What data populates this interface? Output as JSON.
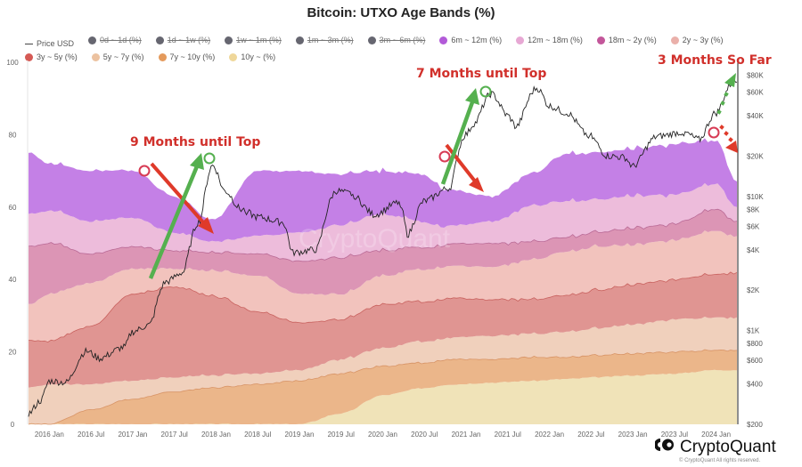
{
  "chart_data": {
    "type": "area",
    "title": "Bitcoin: UTXO Age Bands (%)",
    "xlabel": "",
    "ylabel": "",
    "ylim": [
      0,
      100
    ],
    "y_ticks": [
      "0",
      "20",
      "40",
      "60",
      "80",
      "100"
    ],
    "y2_scale": "log",
    "y2lim": [
      200,
      100000
    ],
    "y2_ticks": [
      {
        "label": "$80K",
        "value": 80000
      },
      {
        "label": "$60K",
        "value": 60000
      },
      {
        "label": "$40K",
        "value": 40000
      },
      {
        "label": "$20K",
        "value": 20000
      },
      {
        "label": "$10K",
        "value": 10000
      },
      {
        "label": "$8K",
        "value": 8000
      },
      {
        "label": "$6K",
        "value": 6000
      },
      {
        "label": "$4K",
        "value": 4000
      },
      {
        "label": "$2K",
        "value": 2000
      },
      {
        "label": "$1K",
        "value": 1000
      },
      {
        "label": "$800",
        "value": 800
      },
      {
        "label": "$600",
        "value": 600
      },
      {
        "label": "$400",
        "value": 400
      },
      {
        "label": "$200",
        "value": 200
      }
    ],
    "x_ticks": [
      "2016 Jan",
      "2016 Jul",
      "2017 Jan",
      "2017 Jul",
      "2018 Jan",
      "2018 Jul",
      "2019 Jan",
      "2019 Jul",
      "2020 Jan",
      "2020 Jul",
      "2021 Jan",
      "2021 Jul",
      "2022 Jan",
      "2022 Jul",
      "2023 Jan",
      "2023 Jul",
      "2024 Jan"
    ],
    "x": [
      2015.75,
      2016.0,
      2016.5,
      2017.0,
      2017.5,
      2017.96,
      2018.5,
      2019.0,
      2019.5,
      2020.0,
      2020.5,
      2020.8,
      2021.3,
      2021.8,
      2022.2,
      2022.6,
      2023.0,
      2023.5,
      2024.0,
      2024.25
    ],
    "legend_placement": "top",
    "grid": false,
    "series": [
      {
        "name": "10y ~ (%)",
        "color": "#f0e3b8",
        "values": [
          0,
          0,
          0,
          0,
          0,
          0,
          0,
          0,
          3,
          8,
          10,
          11,
          11.5,
          12,
          12.5,
          13,
          13.5,
          14,
          15,
          15
        ]
      },
      {
        "name": "7y ~ 10y (%)",
        "color": "#ebb68a",
        "values": [
          0,
          0,
          4,
          7,
          9,
          10,
          11,
          12,
          11,
          8,
          7,
          7,
          6.5,
          6.5,
          6,
          6,
          6,
          6,
          5.5,
          5.5
        ]
      },
      {
        "name": "5y ~ 7y (%)",
        "color": "#f0d0bc",
        "values": [
          10,
          11,
          7,
          5,
          4,
          3.5,
          3,
          3,
          4,
          5,
          6,
          6,
          6.5,
          6.5,
          7,
          7.5,
          8,
          9,
          9,
          9
        ]
      },
      {
        "name": "3y ~ 5y (%)",
        "color": "#e09592",
        "values": [
          13,
          12,
          16,
          24,
          25,
          22,
          17,
          13,
          11,
          12,
          11,
          11,
          10,
          9.5,
          10,
          10.5,
          11,
          11,
          12,
          12.5
        ]
      },
      {
        "name": "2y ~ 3y (%)",
        "color": "#f2c3bd",
        "values": [
          10,
          13,
          12,
          7,
          5,
          7,
          10,
          8,
          7,
          8,
          9,
          9,
          9,
          11,
          12,
          12,
          11,
          11,
          12,
          10
        ]
      },
      {
        "name": "18m ~ 2y (%)",
        "color": "#dc95b5",
        "values": [
          16,
          14,
          8,
          6,
          5,
          5,
          6,
          9,
          10,
          7,
          6,
          6,
          6.5,
          5,
          4,
          4,
          4.5,
          4.5,
          6,
          4
        ]
      },
      {
        "name": "12m ~ 18m (%)",
        "color": "#edbcdb",
        "values": [
          9,
          9,
          9,
          8,
          5,
          3,
          5,
          8,
          9,
          10,
          7,
          5,
          6,
          10,
          10,
          9,
          9,
          8,
          7,
          4
        ]
      },
      {
        "name": "6m ~ 12m (%)",
        "color": "#c480e6",
        "values": [
          17,
          13,
          14,
          13,
          10,
          6,
          18,
          17,
          14,
          12,
          13,
          10,
          7,
          9,
          13,
          13,
          13,
          14,
          12,
          7
        ]
      }
    ],
    "price_usd": {
      "name": "Price USD",
      "color": "#222222",
      "axis": "right",
      "x": [
        2015.75,
        2015.9,
        2016.0,
        2016.2,
        2016.45,
        2016.6,
        2016.9,
        2017.0,
        2017.2,
        2017.4,
        2017.6,
        2017.8,
        2017.96,
        2018.1,
        2018.3,
        2018.5,
        2018.8,
        2018.92,
        2019.2,
        2019.45,
        2019.6,
        2019.9,
        2020.2,
        2020.3,
        2020.5,
        2020.8,
        2021.0,
        2021.1,
        2021.3,
        2021.5,
        2021.6,
        2021.85,
        2022.0,
        2022.2,
        2022.45,
        2022.7,
        2022.9,
        2023.0,
        2023.3,
        2023.6,
        2023.8,
        2024.0,
        2024.2,
        2024.25
      ],
      "values": [
        240,
        300,
        420,
        410,
        700,
        620,
        750,
        980,
        1100,
        2300,
        2700,
        6500,
        17000,
        11000,
        8000,
        7000,
        6400,
        3800,
        4000,
        11000,
        10500,
        7300,
        9000,
        5200,
        9200,
        11500,
        29000,
        35000,
        58000,
        40000,
        33000,
        64000,
        47000,
        42000,
        29000,
        20000,
        19500,
        16700,
        28000,
        30000,
        26500,
        42000,
        70000,
        72000
      ]
    },
    "disabled_series": [
      "0d ~ 1d (%)",
      "1d ~ 1w (%)",
      "1w ~ 1m (%)",
      "1m ~ 3m (%)",
      "3m ~ 6m (%)"
    ],
    "annotations": [
      {
        "text": "9 Months until Top",
        "color": "#d1302b"
      },
      {
        "text": "7 Months until Top",
        "color": "#d1302b"
      },
      {
        "text": "3 Months So Far",
        "color": "#d1302b"
      }
    ],
    "watermark": "CryptoQuant"
  },
  "legend": [
    {
      "label": "Price USD",
      "kind": "line",
      "color": "#444444",
      "enabled": true
    },
    {
      "label": "0d ~ 1d (%)",
      "kind": "dot",
      "color": "#666670",
      "enabled": false
    },
    {
      "label": "1d ~ 1w (%)",
      "kind": "dot",
      "color": "#666670",
      "enabled": false
    },
    {
      "label": "1w ~ 1m (%)",
      "kind": "dot",
      "color": "#666670",
      "enabled": false
    },
    {
      "label": "1m ~ 3m (%)",
      "kind": "dot",
      "color": "#666670",
      "enabled": false
    },
    {
      "label": "3m ~ 6m (%)",
      "kind": "dot",
      "color": "#666670",
      "enabled": false
    },
    {
      "label": "6m ~ 12m (%)",
      "kind": "dot",
      "color": "#b25ad8",
      "enabled": true
    },
    {
      "label": "12m ~ 18m (%)",
      "kind": "dot",
      "color": "#e7a8d4",
      "enabled": true
    },
    {
      "label": "18m ~ 2y (%)",
      "kind": "dot",
      "color": "#c3569a",
      "enabled": true
    },
    {
      "label": "2y ~ 3y (%)",
      "kind": "dot",
      "color": "#eab0aa",
      "enabled": true
    },
    {
      "label": "3y ~ 5y (%)",
      "kind": "dot",
      "color": "#d55a55",
      "enabled": true
    },
    {
      "label": "5y ~ 7y (%)",
      "kind": "dot",
      "color": "#ecc2a0",
      "enabled": true
    },
    {
      "label": "7y ~ 10y (%)",
      "kind": "dot",
      "color": "#e49a5c",
      "enabled": true
    },
    {
      "label": "10y ~ (%)",
      "kind": "dot",
      "color": "#efd79a",
      "enabled": true
    }
  ],
  "brand": {
    "name": "CryptoQuant",
    "copyright": "© CryptoQuant All rights reserved."
  }
}
